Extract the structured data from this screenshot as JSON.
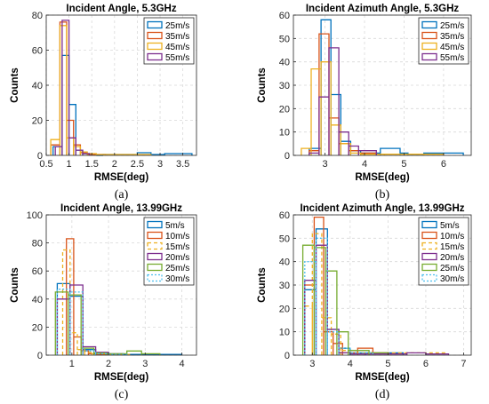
{
  "chart_data": [
    {
      "type": "histogram",
      "title": "Incident Angle, 5.3GHz",
      "xlabel": "RMSE(deg)",
      "ylabel": "Counts",
      "caption": "(a)",
      "xlim": [
        0.5,
        3.8
      ],
      "ylim": [
        0,
        80
      ],
      "xticks": [
        0.5,
        1,
        1.5,
        2,
        2.5,
        3,
        3.5
      ],
      "xticklabels": [
        "0.5",
        "1",
        "1.5",
        "2",
        "2.5",
        "3",
        "3.5"
      ],
      "yticks": [
        0,
        20,
        40,
        60,
        80
      ],
      "grid": true,
      "legend_position": "top-right",
      "series": [
        {
          "name": "25m/s",
          "color": "#0072BD",
          "dash": "",
          "edges": [
            0.65,
            0.85,
            1.0,
            1.15,
            1.3,
            1.45,
            1.6,
            1.75,
            2.5,
            2.8,
            3.1,
            3.7
          ],
          "values": [
            5,
            57,
            29,
            3,
            1,
            0.5,
            0,
            0.5,
            1.5,
            0.5,
            1
          ]
        },
        {
          "name": "35m/s",
          "color": "#D95319",
          "dash": "",
          "edges": [
            0.6,
            0.8,
            0.95,
            1.1,
            1.25,
            1.4,
            1.55,
            1.8
          ],
          "values": [
            6,
            76,
            20,
            6,
            1.5,
            0.5,
            0.5
          ]
        },
        {
          "name": "45m/s",
          "color": "#EDB120",
          "dash": "",
          "edges": [
            0.6,
            0.8,
            0.95,
            1.1,
            1.25,
            1.4,
            1.6,
            2.0,
            2.4,
            2.8
          ],
          "values": [
            9,
            74,
            10,
            5,
            2,
            1,
            0.5,
            0.5,
            0.5
          ]
        },
        {
          "name": "55m/s",
          "color": "#7E2F8E",
          "dash": "",
          "edges": [
            0.7,
            0.85,
            1.0,
            1.15,
            1.3,
            1.45
          ],
          "values": [
            5,
            77,
            10,
            3,
            1
          ]
        }
      ]
    },
    {
      "type": "histogram",
      "title": "Incident Azimuth Angle, 5.3GHz",
      "xlabel": "RMSE(deg)",
      "ylabel": "Counts",
      "caption": "(b)",
      "xlim": [
        2.2,
        6.7
      ],
      "ylim": [
        0,
        60
      ],
      "xticks": [
        3,
        4,
        5,
        6
      ],
      "xticklabels": [
        "3",
        "4",
        "5",
        "6"
      ],
      "yticks": [
        0,
        10,
        20,
        30,
        40,
        50,
        60
      ],
      "grid": true,
      "legend_position": "top-right",
      "series": [
        {
          "name": "25m/s",
          "color": "#0072BD",
          "dash": "",
          "edges": [
            2.6,
            2.9,
            3.15,
            3.4,
            3.65,
            3.9,
            4.4,
            4.9,
            5.1,
            5.5,
            6.5
          ],
          "values": [
            3,
            58,
            26,
            6,
            2,
            1,
            3,
            1,
            0.5,
            1
          ]
        },
        {
          "name": "35m/s",
          "color": "#D95319",
          "dash": "",
          "edges": [
            2.6,
            2.85,
            3.1,
            3.35,
            3.6,
            3.85,
            4.3
          ],
          "values": [
            2,
            52,
            16,
            5,
            2,
            1
          ]
        },
        {
          "name": "45m/s",
          "color": "#EDB120",
          "dash": "",
          "edges": [
            2.4,
            2.65,
            2.9,
            3.15,
            3.4,
            3.65,
            3.9,
            4.5,
            5.5,
            6.0
          ],
          "values": [
            3,
            37,
            40,
            13,
            5,
            1,
            0.5,
            0.5,
            0.5
          ]
        },
        {
          "name": "55m/s",
          "color": "#7E2F8E",
          "dash": "",
          "edges": [
            2.6,
            2.85,
            3.1,
            3.35,
            3.6,
            3.85,
            4.3
          ],
          "values": [
            1,
            25,
            46,
            10,
            4,
            2
          ]
        }
      ]
    },
    {
      "type": "histogram",
      "title": "Incident Angle, 13.99GHz",
      "xlabel": "RMSE(deg)",
      "ylabel": "Counts",
      "caption": "(c)",
      "xlim": [
        0.3,
        4.4
      ],
      "ylim": [
        0,
        100
      ],
      "xticks": [
        1,
        2,
        3,
        4
      ],
      "xticklabels": [
        "1",
        "2",
        "3",
        "4"
      ],
      "yticks": [
        0,
        20,
        40,
        60,
        80,
        100
      ],
      "grid": true,
      "legend_position": "top-right",
      "series": [
        {
          "name": "5m/s",
          "color": "#0072BD",
          "dash": "",
          "edges": [
            0.6,
            0.95,
            1.3,
            1.65,
            2.0,
            2.4,
            3.5,
            4.0
          ],
          "values": [
            51,
            42,
            4,
            1,
            0.5,
            0.5,
            0.5
          ]
        },
        {
          "name": "10m/s",
          "color": "#D95319",
          "dash": "",
          "edges": [
            0.85,
            1.05,
            1.25,
            1.45,
            1.65,
            2.0
          ],
          "values": [
            83,
            13,
            3,
            1,
            0.5
          ]
        },
        {
          "name": "15m/s",
          "color": "#EDB120",
          "dash": "4 3",
          "edges": [
            0.75,
            0.95,
            1.15,
            1.35,
            1.55,
            2.0,
            2.6
          ],
          "values": [
            75,
            16,
            4,
            2,
            1,
            0.5
          ]
        },
        {
          "name": "20m/s",
          "color": "#7E2F8E",
          "dash": "",
          "edges": [
            0.6,
            0.95,
            1.3,
            1.65,
            2.0,
            2.4
          ],
          "values": [
            40,
            50,
            6,
            2,
            1
          ]
        },
        {
          "name": "25m/s",
          "color": "#77AC30",
          "dash": "",
          "edges": [
            0.55,
            0.9,
            1.25,
            1.6,
            1.95,
            2.5,
            2.9,
            3.4
          ],
          "values": [
            45,
            43,
            5,
            1.5,
            1,
            3,
            1
          ]
        },
        {
          "name": "30m/s",
          "color": "#4DBEEE",
          "dash": "2 2",
          "edges": [
            0.6,
            0.95,
            1.3,
            1.65,
            2.0,
            2.5
          ],
          "values": [
            47,
            45,
            3,
            1,
            0.5
          ]
        }
      ]
    },
    {
      "type": "histogram",
      "title": "Incident Azimuth Angle, 13.99GHz",
      "xlabel": "RMSE(deg)",
      "ylabel": "Counts",
      "caption": "(d)",
      "xlim": [
        2.5,
        7.2
      ],
      "ylim": [
        0,
        60
      ],
      "xticks": [
        3,
        4,
        5,
        6,
        7
      ],
      "xticklabels": [
        "3",
        "4",
        "5",
        "6",
        "7"
      ],
      "yticks": [
        0,
        10,
        20,
        30,
        40,
        50,
        60
      ],
      "grid": true,
      "legend_position": "top-right",
      "series": [
        {
          "name": "5m/s",
          "color": "#0072BD",
          "dash": "",
          "edges": [
            2.8,
            3.1,
            3.4,
            3.7,
            4.0,
            4.4,
            5.4
          ],
          "values": [
            28,
            54,
            11,
            3,
            1,
            1
          ]
        },
        {
          "name": "10m/s",
          "color": "#D95319",
          "dash": "",
          "edges": [
            2.8,
            3.05,
            3.3,
            3.55,
            3.8,
            4.2,
            4.6,
            5.0
          ],
          "values": [
            30,
            59,
            10,
            5,
            1,
            3,
            1
          ]
        },
        {
          "name": "15m/s",
          "color": "#EDB120",
          "dash": "4 3",
          "edges": [
            2.8,
            3.0,
            3.25,
            3.5,
            3.75,
            4.2,
            5.0,
            6.5
          ],
          "values": [
            21,
            52,
            16,
            9,
            2,
            1,
            1
          ]
        },
        {
          "name": "20m/s",
          "color": "#7E2F8E",
          "dash": "",
          "edges": [
            2.8,
            3.1,
            3.4,
            3.7,
            4.0,
            5.5,
            6.0,
            6.6
          ],
          "values": [
            32,
            47,
            11,
            1,
            0.5,
            1,
            0.5
          ]
        },
        {
          "name": "25m/s",
          "color": "#77AC30",
          "dash": "",
          "edges": [
            2.75,
            3.05,
            3.35,
            3.65,
            3.95,
            4.5,
            5.0
          ],
          "values": [
            47,
            46,
            36,
            10,
            2,
            1
          ]
        },
        {
          "name": "30m/s",
          "color": "#4DBEEE",
          "dash": "2 2",
          "edges": [
            2.8,
            3.1,
            3.4,
            3.7,
            4.0,
            4.6
          ],
          "values": [
            40,
            50,
            10,
            3,
            1
          ]
        }
      ]
    }
  ]
}
